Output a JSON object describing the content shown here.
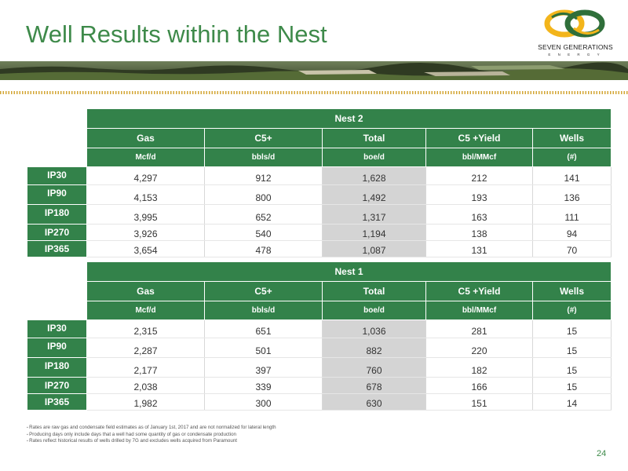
{
  "title": "Well Results within the Nest",
  "logo": {
    "name": "SEVEN GENERATIONS",
    "sub": "E N E R G Y",
    "colors": [
      "#f3b51b",
      "#2f6f3a"
    ]
  },
  "tables": [
    {
      "name": "Nest 2",
      "headers": [
        "Gas",
        "C5+",
        "Total",
        "C5 +Yield",
        "Wells"
      ],
      "units": [
        "Mcf/d",
        "bbls/d",
        "boe/d",
        "bbl/MMcf",
        "(#)"
      ],
      "rows": [
        {
          "label": "IP30",
          "values": [
            "4,297",
            "912",
            "1,628",
            "212",
            "141"
          ]
        },
        {
          "label": "IP90",
          "values": [
            "4,153",
            "800",
            "1,492",
            "193",
            "136"
          ]
        },
        {
          "label": "IP180",
          "values": [
            "3,995",
            "652",
            "1,317",
            "163",
            "111"
          ]
        },
        {
          "label": "IP270",
          "values": [
            "3,926",
            "540",
            "1,194",
            "138",
            "94"
          ]
        },
        {
          "label": "IP365",
          "values": [
            "3,654",
            "478",
            "1,087",
            "131",
            "70"
          ]
        }
      ]
    },
    {
      "name": "Nest 1",
      "headers": [
        "Gas",
        "C5+",
        "Total",
        "C5 +Yield",
        "Wells"
      ],
      "units": [
        "Mcf/d",
        "bbls/d",
        "boe/d",
        "bbl/MMcf",
        "(#)"
      ],
      "rows": [
        {
          "label": "IP30",
          "values": [
            "2,315",
            "651",
            "1,036",
            "281",
            "15"
          ]
        },
        {
          "label": "IP90",
          "values": [
            "2,287",
            "501",
            "882",
            "220",
            "15"
          ]
        },
        {
          "label": "IP180",
          "values": [
            "2,177",
            "397",
            "760",
            "182",
            "15"
          ]
        },
        {
          "label": "IP270",
          "values": [
            "2,038",
            "339",
            "678",
            "166",
            "15"
          ]
        },
        {
          "label": "IP365",
          "values": [
            "1,982",
            "300",
            "630",
            "151",
            "14"
          ]
        }
      ]
    }
  ],
  "footnotes": [
    "Rates are raw gas and condensate field estimates as of January 1st, 2017 and are not normalized for lateral length",
    "Producing days only include days that a well had some quantity of gas or condensate production",
    "Rates reflect historical results of wells drilled by 7G and excludes wells acquired from Paramount"
  ],
  "page_number": "24",
  "colors": {
    "accent_green": "#33824a",
    "title_green": "#3e8a4a",
    "shade": "#d4d4d4",
    "dots": "#d3a634"
  }
}
